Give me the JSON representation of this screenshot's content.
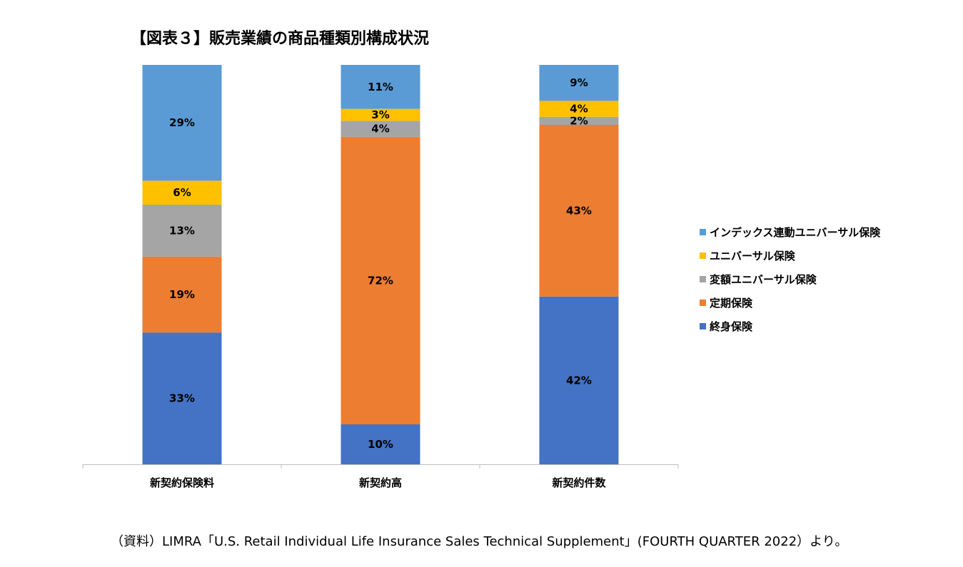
{
  "chart_data": {
    "type": "bar",
    "stacked": true,
    "title": "【図表３】販売業績の商品種類別構成状況",
    "categories": [
      "新契約保険料",
      "新契約高",
      "新契約件数"
    ],
    "series": [
      {
        "name": "終身保険",
        "color": "#4472C4",
        "values": [
          33,
          10,
          42
        ],
        "labels": [
          "33%",
          "10%",
          "42%"
        ]
      },
      {
        "name": "定期保険",
        "color": "#ED7D31",
        "values": [
          19,
          72,
          43
        ],
        "labels": [
          "19%",
          "72%",
          "43%"
        ]
      },
      {
        "name": "変額ユニバーサル保険",
        "color": "#A5A5A5",
        "values": [
          13,
          4,
          2
        ],
        "labels": [
          "13%",
          "4%",
          "2%"
        ]
      },
      {
        "name": "ユニバーサル保険",
        "color": "#FFC000",
        "values": [
          6,
          3,
          4
        ],
        "labels": [
          "6%",
          "3%",
          "4%"
        ]
      },
      {
        "name": "インデックス連動ユニバーサル保険",
        "color": "#5B9BD5",
        "values": [
          29,
          11,
          9
        ],
        "labels": [
          "29%",
          "11%",
          "9%"
        ]
      }
    ],
    "ylim": [
      0,
      100
    ],
    "grid": false,
    "legend_position": "right"
  },
  "source_note": "（資料）LIMRA「U.S. Retail Individual Life Insurance Sales Technical Supplement」(FOURTH QUARTER 2022）より。"
}
